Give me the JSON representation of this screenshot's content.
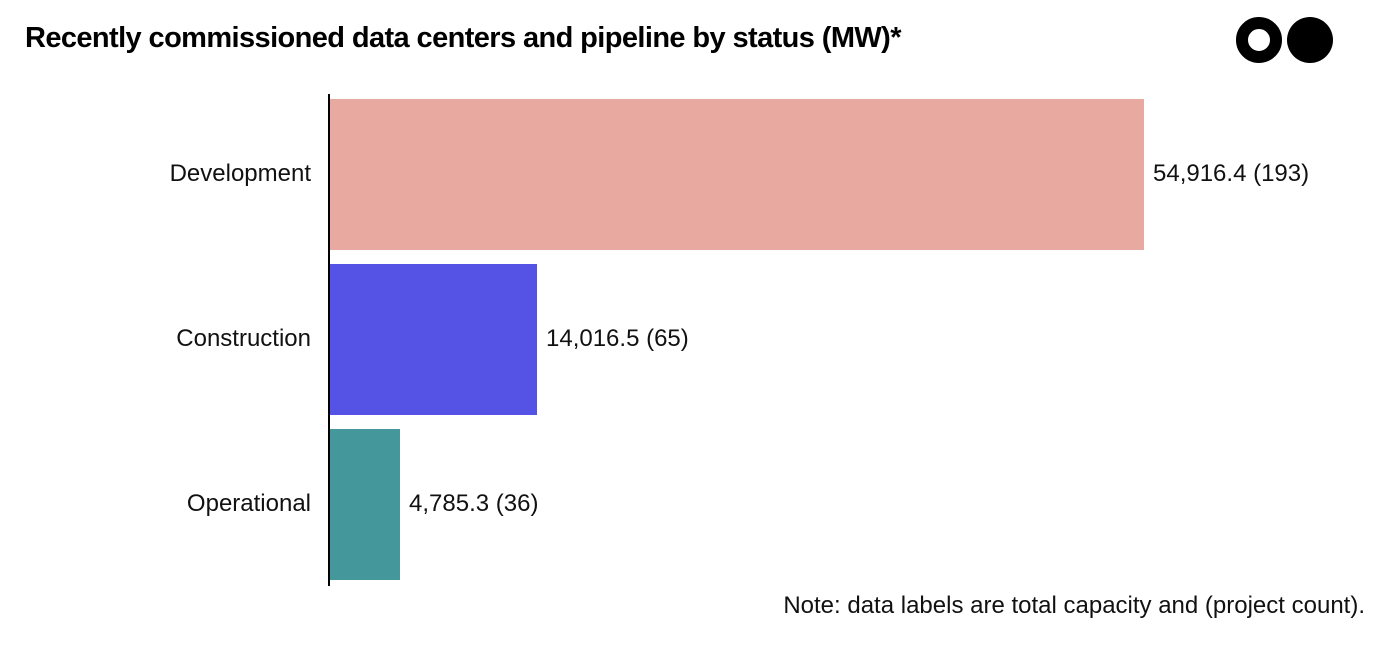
{
  "title": "Recently commissioned data centers and pipeline by status (MW)*",
  "logo": {
    "icon": "two-circles-logo-icon"
  },
  "note": "Note: data labels are total capacity and (project count).",
  "chart_data": {
    "type": "bar",
    "orientation": "horizontal",
    "categories": [
      "Development",
      "Construction",
      "Operational"
    ],
    "values": [
      54916.4,
      14016.5,
      4785.3
    ],
    "counts": [
      193,
      65,
      36
    ],
    "data_labels": [
      "54,916.4 (193)",
      "14,016.5 (65)",
      "4,785.3 (36)"
    ],
    "colors": [
      "#e8aaa0",
      "#5552e6",
      "#44979a"
    ],
    "xlim": [
      0,
      55000
    ],
    "grid": false,
    "legend": "none"
  }
}
